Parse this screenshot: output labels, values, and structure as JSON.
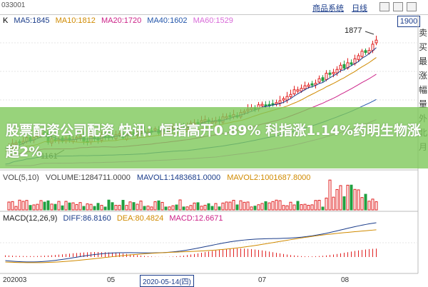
{
  "stock_code": "033001",
  "toolbar": {
    "links": [
      "商品系统",
      "日线"
    ]
  },
  "current_price": "1900",
  "ma": [
    {
      "label": "K",
      "color": "#000000"
    },
    {
      "label": "MA5:1845",
      "color": "#1a3c8a"
    },
    {
      "label": "MA10:1812",
      "color": "#d08a00"
    },
    {
      "label": "MA20:1720",
      "color": "#cc2288"
    },
    {
      "label": "MA40:1602",
      "color": "#2255aa"
    },
    {
      "label": "MA60:1529",
      "color": "#d86ad8"
    }
  ],
  "high_label": "1877",
  "low_label": "1161",
  "headline": "股票配资公司配资 快讯：恒指高开0.89% 科指涨1.14%药明生物涨超2%",
  "volume": {
    "title": "VOL(5,10)",
    "value": "VOLUME:1284711.0000",
    "mavol1": "MAVOL1:1483681.0000",
    "mavol2": "MAVOL2:1001687.8000"
  },
  "macd": {
    "title": "MACD(12,26,9)",
    "diff": "DIFF:86.8160",
    "dea": "DEA:80.4824",
    "macd": "MACD:12.6671"
  },
  "right_panel": [
    "卖",
    "买",
    "最",
    "涨",
    "幅",
    "量",
    "外",
    "北",
    "月"
  ],
  "x_axis": {
    "left": "202003",
    "mid1": "05",
    "selected_date": "2020-05-14(四)",
    "mid2": "07",
    "mid3": "08"
  },
  "colors": {
    "up": "#e02020",
    "down": "#20a040",
    "accent": "#1a3c8a"
  }
}
